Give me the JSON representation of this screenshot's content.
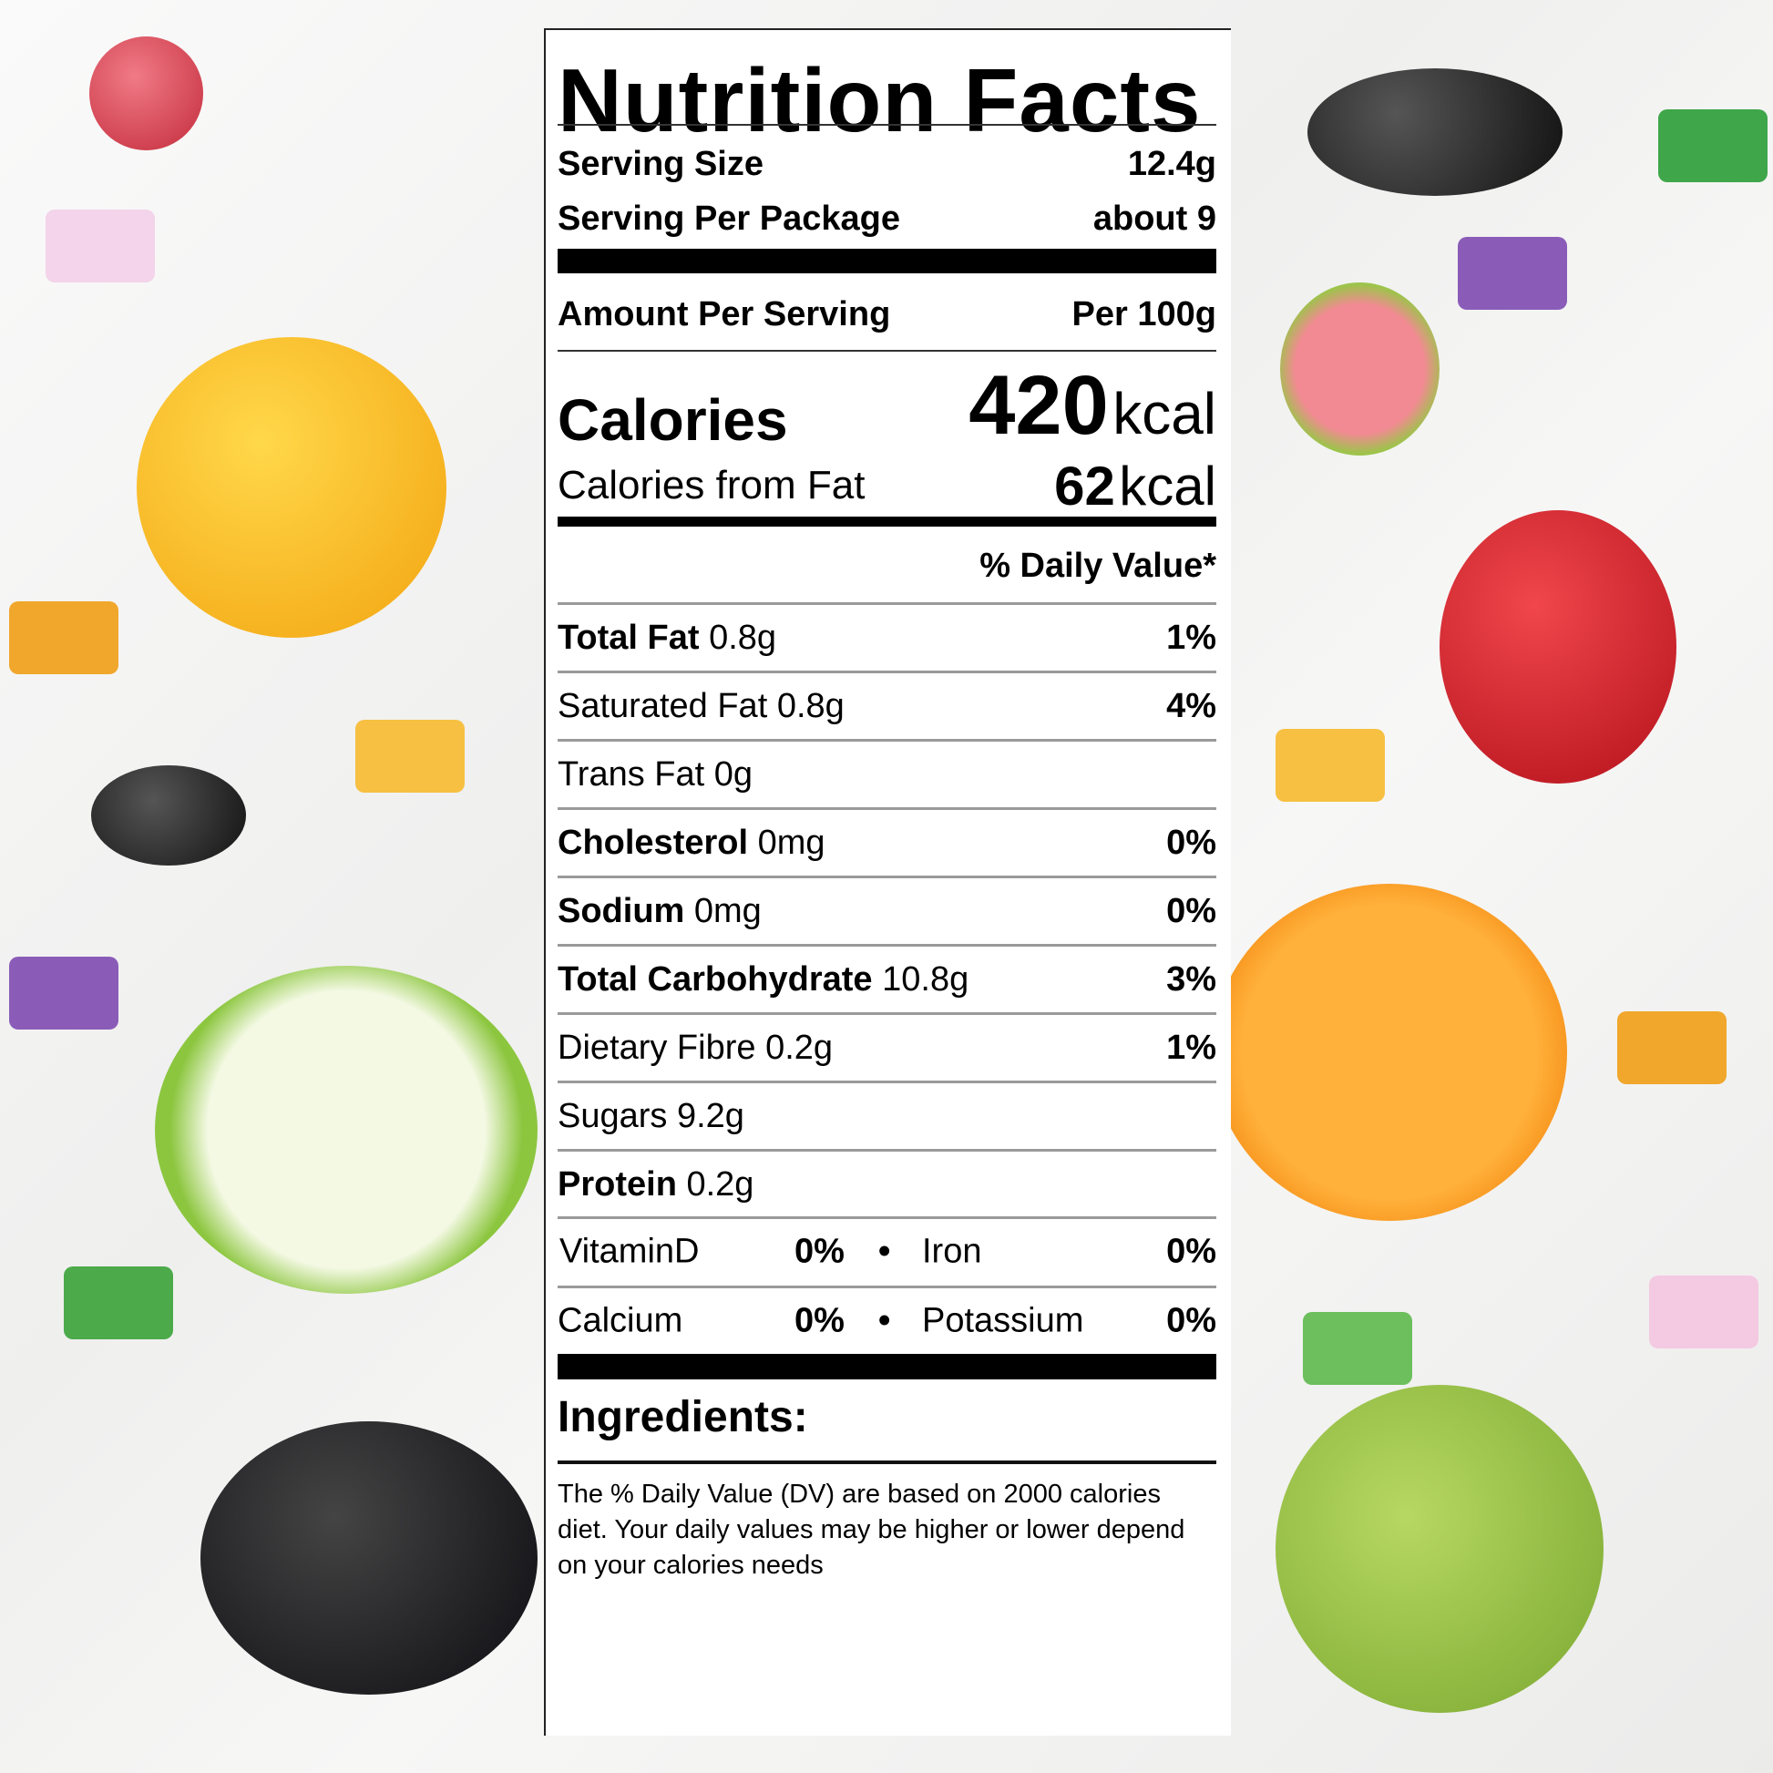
{
  "label": {
    "title": "Nutrition Facts",
    "serving_size_label": "Serving Size",
    "serving_size_value": "12.4g",
    "servings_label": "Serving Per Package",
    "servings_value": "about 9",
    "amount_label": "Amount Per Serving",
    "amount_basis": "Per 100g",
    "calories_label": "Calories",
    "calories_value": "420",
    "calories_unit": "kcal",
    "fat_cal_label": "Calories from Fat",
    "fat_cal_value": "62",
    "fat_cal_unit": "kcal",
    "dv_header": "% Daily Value*",
    "nutrients": [
      {
        "name": "Total Fat",
        "amount": "0.8g",
        "dv": "1%",
        "bold": true
      },
      {
        "name": "Saturated Fat",
        "amount": "0.8g",
        "dv": "4%",
        "bold": false
      },
      {
        "name": "Trans Fat",
        "amount": "0g",
        "dv": "",
        "bold": false
      },
      {
        "name": "Cholesterol",
        "amount": "0mg",
        "dv": "0%",
        "bold": true
      },
      {
        "name": "Sodium",
        "amount": "0mg",
        "dv": "0%",
        "bold": true
      },
      {
        "name": "Total Carbohydrate",
        "amount": "10.8g",
        "dv": "3%",
        "bold": true
      },
      {
        "name": "Dietary Fibre",
        "amount": "0.2g",
        "dv": "1%",
        "bold": false
      },
      {
        "name": "Sugars",
        "amount": "9.2g",
        "dv": "",
        "bold": false
      },
      {
        "name": "Protein",
        "amount": "0.2g",
        "dv": "",
        "bold": true
      }
    ],
    "vitamins": [
      {
        "a_name": "VitaminD",
        "a_dv": "0%",
        "b_name": "Iron",
        "b_dv": "0%"
      },
      {
        "a_name": "Calcium",
        "a_dv": "0%",
        "b_name": "Potassium",
        "b_dv": "0%"
      }
    ],
    "bullet": "•",
    "ingredients_label": "Ingredients:",
    "footnote": "The % Daily Value (DV) are based on 2000 calories diet. Your daily values may be higher or lower depend on your calories needs"
  },
  "colors": {
    "mango": "#f7b21a",
    "apple": "#8cc63f",
    "orange": "#f7941d",
    "berry": "#1a1a22",
    "strawberry": "#d7262d",
    "guava": "#e85a6a",
    "lychee": "#d43b4a"
  }
}
